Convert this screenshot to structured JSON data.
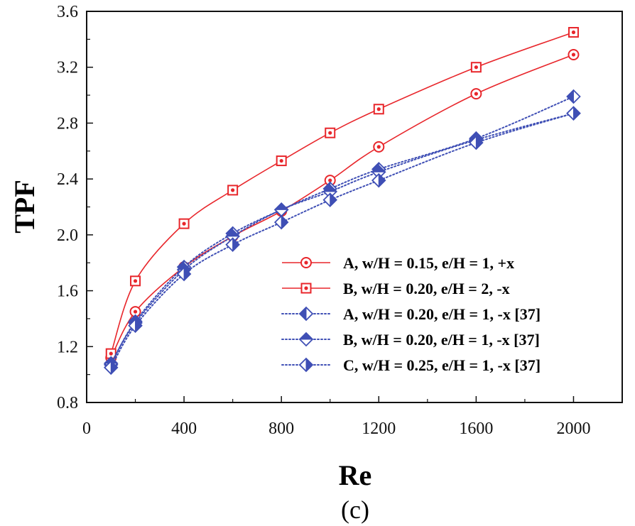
{
  "chart_data": {
    "type": "line",
    "xlabel": "Re",
    "ylabel": "TPF",
    "caption": "(c)",
    "xlim": [
      0,
      2200
    ],
    "ylim": [
      0.8,
      3.6
    ],
    "xticks": [
      0,
      400,
      800,
      1200,
      1600,
      2000
    ],
    "yticks": [
      0.8,
      1.2,
      1.6,
      2.0,
      2.4,
      2.8,
      3.2,
      3.6
    ],
    "xtick_labels": [
      "0",
      "400",
      "800",
      "1200",
      "1600",
      "2000"
    ],
    "ytick_labels": [
      "0.8",
      "1.2",
      "1.6",
      "2.0",
      "2.4",
      "2.8",
      "3.2",
      "3.6"
    ],
    "legend_position": "bottom-right",
    "series": [
      {
        "name": "A, w/H = 0.15, e/H = 1, +x",
        "color": "#e8262b",
        "line": "solid",
        "marker": "circle-dot",
        "x": [
          100,
          200,
          400,
          600,
          800,
          1000,
          1200,
          1600,
          2000
        ],
        "y": [
          1.12,
          1.45,
          1.77,
          1.99,
          2.17,
          2.39,
          2.63,
          3.01,
          3.29
        ]
      },
      {
        "name": "B, w/H = 0.20, e/H = 2, -x",
        "color": "#e8262b",
        "line": "solid",
        "marker": "square-dot",
        "x": [
          100,
          200,
          400,
          600,
          800,
          1000,
          1200,
          1600,
          2000
        ],
        "y": [
          1.15,
          1.67,
          2.08,
          2.32,
          2.53,
          2.73,
          2.9,
          3.2,
          3.45
        ]
      },
      {
        "name": "A, w/H = 0.20, e/H = 1, -x [37]",
        "color": "#3f4fb5",
        "line": "dotted",
        "marker": "diamond-left-half",
        "x": [
          100,
          200,
          400,
          600,
          800,
          1000,
          1200,
          1600,
          2000
        ],
        "y": [
          1.07,
          1.38,
          1.77,
          2.01,
          2.18,
          2.33,
          2.47,
          2.69,
          2.99
        ]
      },
      {
        "name": "B, w/H = 0.20, e/H = 1, -x [37]",
        "color": "#3f4fb5",
        "line": "dotted",
        "marker": "diamond-top-half",
        "x": [
          100,
          200,
          400,
          600,
          800,
          1000,
          1200,
          1600,
          2000
        ],
        "y": [
          1.08,
          1.37,
          1.75,
          1.99,
          2.18,
          2.31,
          2.45,
          2.68,
          2.87
        ]
      },
      {
        "name": "C, w/H = 0.25, e/H = 1, -x [37]",
        "color": "#3f4fb5",
        "line": "dotted",
        "marker": "diamond-right-half",
        "x": [
          100,
          200,
          400,
          600,
          800,
          1000,
          1200,
          1600,
          2000
        ],
        "y": [
          1.05,
          1.35,
          1.72,
          1.93,
          2.09,
          2.25,
          2.39,
          2.66,
          2.87
        ]
      }
    ]
  }
}
